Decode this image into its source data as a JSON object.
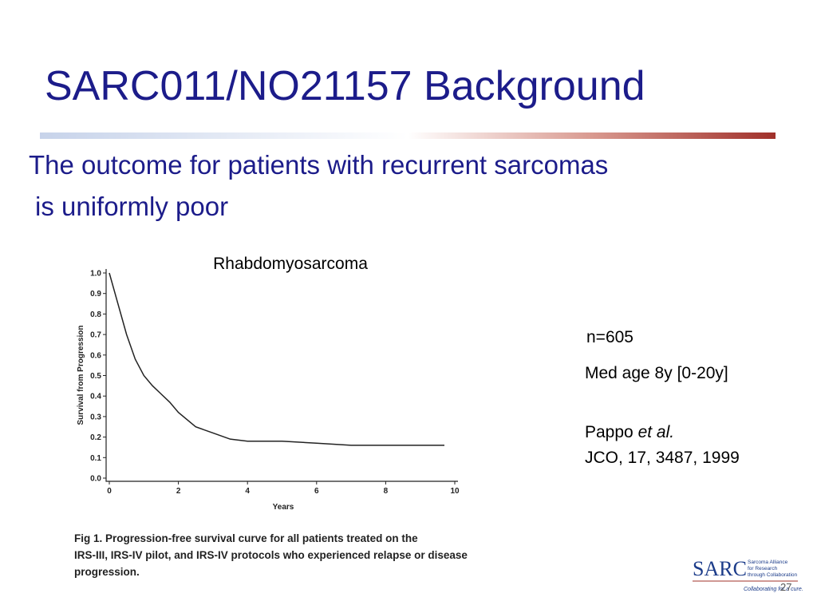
{
  "header": {
    "title": "SARC011/NO21157 Background"
  },
  "subtitle": [
    "The outcome for patients with recurrent sarcomas",
    "is uniformly poor"
  ],
  "notes": {
    "n": "n=605",
    "age": "Med age 8y [0-20y]",
    "citation": {
      "author": "Pappo",
      "etal": "et al.",
      "journal": "JCO, 17, 3487, 1999"
    }
  },
  "caption": [
    "Fig 1.   Progression-free survival curve for all patients treated on the",
    "IRS-III, IRS-IV pilot, and IRS-IV protocols who experienced relapse or disease",
    "progression."
  ],
  "logo": {
    "mark": "SARC",
    "lines": [
      "Sarcoma Alliance",
      "for Research",
      "through Collaboration"
    ],
    "tagline": "Collaborating for a cure."
  },
  "page_number": "27",
  "chart_data": {
    "type": "line",
    "title": "Rhabdomyosarcoma",
    "xlabel": "Years",
    "ylabel": "Survival from Progression",
    "x": [
      0,
      0.25,
      0.5,
      0.75,
      1,
      1.25,
      1.5,
      1.75,
      2,
      2.5,
      3,
      3.5,
      4,
      5,
      6,
      7,
      8,
      9,
      9.7
    ],
    "values": [
      1.0,
      0.85,
      0.7,
      0.58,
      0.5,
      0.45,
      0.41,
      0.37,
      0.32,
      0.25,
      0.22,
      0.19,
      0.18,
      0.18,
      0.17,
      0.16,
      0.16,
      0.16,
      0.16
    ],
    "color": "#222222",
    "xlim": [
      0,
      10
    ],
    "xticks": [
      0,
      2,
      4,
      6,
      8,
      10
    ],
    "ylim": [
      0,
      1
    ],
    "yticks": [
      {
        "value": 0,
        "label": "0.0"
      },
      0.1,
      0.2,
      0.3,
      0.4,
      0.5,
      0.6,
      0.7,
      0.8,
      0.9,
      {
        "value": 1,
        "label": "1.0"
      }
    ]
  }
}
